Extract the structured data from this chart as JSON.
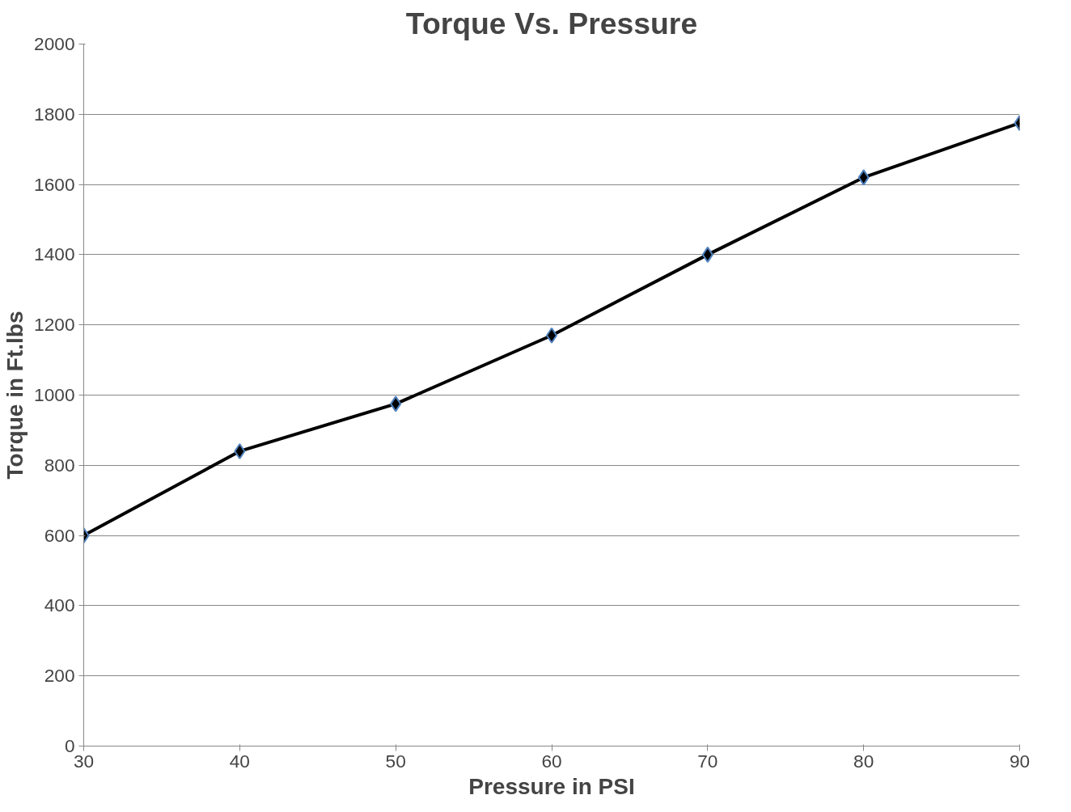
{
  "chart_data": {
    "type": "line",
    "title": "Torque Vs. Pressure",
    "xlabel": "Pressure in PSI",
    "ylabel": "Torque in Ft.lbs",
    "x": [
      30,
      40,
      50,
      60,
      70,
      80,
      90
    ],
    "series": [
      {
        "color": "#000000",
        "values": [
          600,
          840,
          975,
          1170,
          1400,
          1620,
          1775
        ]
      }
    ],
    "xlim": [
      30,
      90
    ],
    "xticks": [
      30,
      40,
      50,
      60,
      70,
      80,
      90
    ],
    "ylim": [
      0,
      2000
    ],
    "yticks": [
      0,
      200,
      400,
      600,
      800,
      1000,
      1200,
      1400,
      1600,
      1800,
      2000
    ],
    "grid": "y",
    "marker": "diamond",
    "line_style": "solid"
  }
}
